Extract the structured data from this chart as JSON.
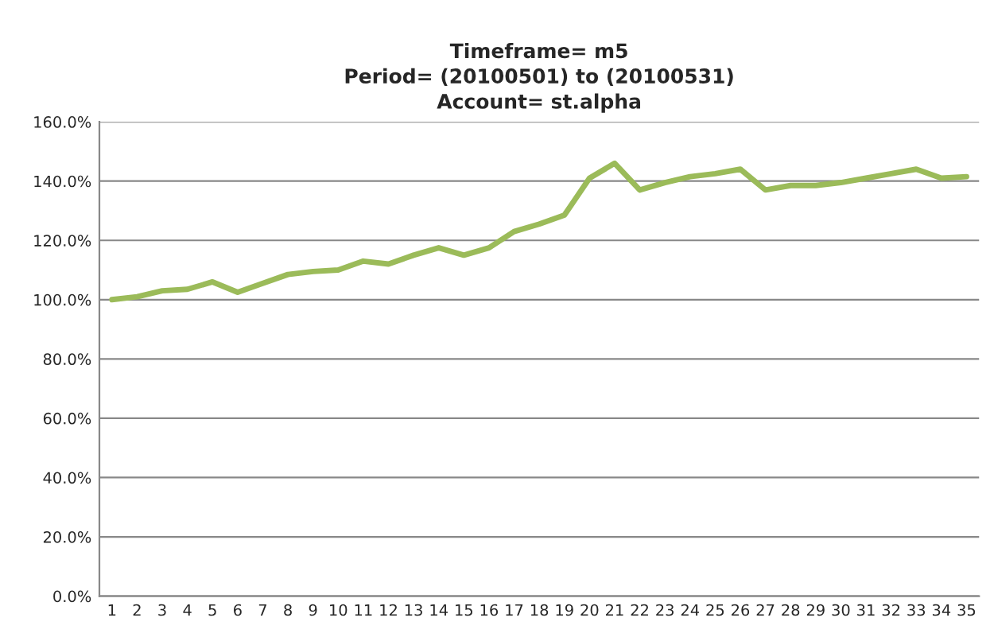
{
  "chart_data": {
    "type": "line",
    "title": "Timeframe= m5\nPeriod= (20100501) to (20100531)\nAccount= st.alpha",
    "categories": [
      "1",
      "2",
      "3",
      "4",
      "5",
      "6",
      "7",
      "8",
      "9",
      "10",
      "11",
      "12",
      "13",
      "14",
      "15",
      "16",
      "17",
      "18",
      "19",
      "20",
      "21",
      "22",
      "23",
      "24",
      "25",
      "26",
      "27",
      "28",
      "29",
      "30",
      "31",
      "32",
      "33",
      "34",
      "35"
    ],
    "series": [
      {
        "color": "#9bbb59",
        "values": [
          100,
          101,
          103,
          103.5,
          106,
          102.5,
          105.5,
          108.5,
          109.5,
          110,
          113,
          112,
          115,
          117.5,
          115,
          117.5,
          123,
          125.5,
          128.5,
          141,
          146,
          137,
          139.5,
          141.5,
          142.5,
          144,
          137,
          138.5,
          138.5,
          139.5,
          141,
          142.5,
          144,
          141,
          141.5
        ]
      }
    ],
    "ylim": [
      0,
      160
    ],
    "yticks": [
      {
        "value": 0,
        "label": "0.0%"
      },
      {
        "value": 20,
        "label": "20.0%"
      },
      {
        "value": 40,
        "label": "40.0%"
      },
      {
        "value": 60,
        "label": "60.0%"
      },
      {
        "value": 80,
        "label": "80.0%"
      },
      {
        "value": 100,
        "label": "100.0%"
      },
      {
        "value": 120,
        "label": "120.0%"
      },
      {
        "value": 140,
        "label": "140.0%"
      },
      {
        "value": 160,
        "label": "160.0%"
      }
    ],
    "grid": "y",
    "marker": "none",
    "line_style": "solid"
  }
}
